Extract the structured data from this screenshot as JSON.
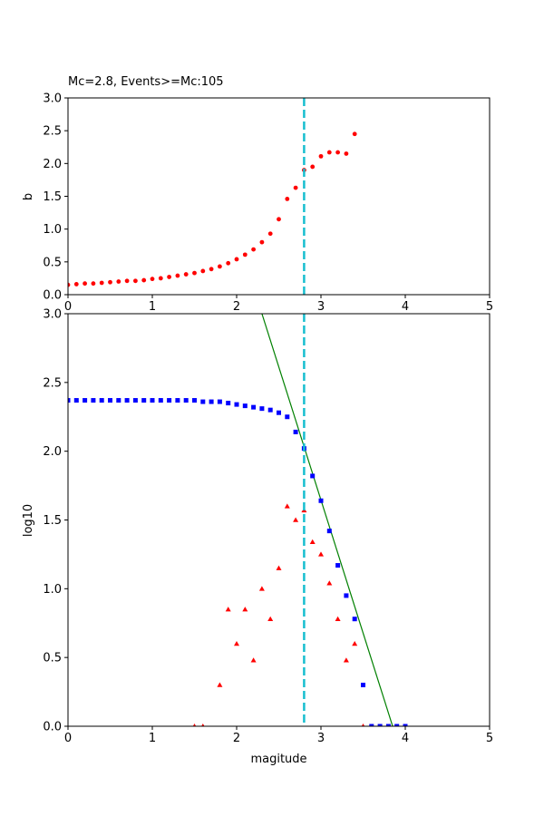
{
  "chart_data": [
    {
      "type": "scatter",
      "title": "Mc=2.8, Events>=Mc:105",
      "xlabel": "",
      "ylabel": "b",
      "xlim": [
        0,
        5
      ],
      "ylim": [
        0,
        3.0
      ],
      "xticks": [
        "0",
        "1",
        "2",
        "3",
        "4",
        "5"
      ],
      "yticks": [
        "0.0",
        "0.5",
        "1.0",
        "1.5",
        "2.0",
        "2.5",
        "3.0"
      ],
      "grid": false,
      "mc_line": {
        "x": 2.8,
        "color": "#17becf",
        "style": "dashed"
      },
      "series": [
        {
          "marker": "dot",
          "color": "#ff0000",
          "x": [
            0.0,
            0.1,
            0.2,
            0.3,
            0.4,
            0.5,
            0.6,
            0.7,
            0.8,
            0.9,
            1.0,
            1.1,
            1.2,
            1.3,
            1.4,
            1.5,
            1.6,
            1.7,
            1.8,
            1.9,
            2.0,
            2.1,
            2.2,
            2.3,
            2.4,
            2.5,
            2.6,
            2.7,
            2.8,
            2.9,
            3.0,
            3.1,
            3.2,
            3.3,
            3.4
          ],
          "y": [
            0.15,
            0.16,
            0.17,
            0.17,
            0.18,
            0.19,
            0.2,
            0.21,
            0.21,
            0.22,
            0.24,
            0.25,
            0.27,
            0.29,
            0.31,
            0.33,
            0.36,
            0.39,
            0.43,
            0.48,
            0.54,
            0.61,
            0.69,
            0.8,
            0.93,
            1.15,
            1.46,
            1.63,
            1.9,
            1.95,
            2.11,
            2.17,
            2.17,
            2.15,
            2.45
          ]
        }
      ]
    },
    {
      "type": "scatter",
      "title": "",
      "xlabel": "magitude",
      "ylabel": "log10",
      "xlim": [
        0,
        5
      ],
      "ylim": [
        0,
        3.0
      ],
      "xticks": [
        "0",
        "1",
        "2",
        "3",
        "4",
        "5"
      ],
      "yticks": [
        "0.0",
        "0.5",
        "1.0",
        "1.5",
        "2.0",
        "2.5",
        "3.0"
      ],
      "grid": false,
      "mc_line": {
        "x": 2.8,
        "color": "#17becf",
        "style": "dashed"
      },
      "fit_line": {
        "color": "#008000",
        "points": [
          [
            2.3,
            3.0
          ],
          [
            3.85,
            0.0
          ]
        ]
      },
      "series": [
        {
          "marker": "square",
          "color": "#0000ff",
          "x": [
            0.0,
            0.1,
            0.2,
            0.3,
            0.4,
            0.5,
            0.6,
            0.7,
            0.8,
            0.9,
            1.0,
            1.1,
            1.2,
            1.3,
            1.4,
            1.5,
            1.6,
            1.7,
            1.8,
            1.9,
            2.0,
            2.1,
            2.2,
            2.3,
            2.4,
            2.5,
            2.6,
            2.7,
            2.8,
            2.9,
            3.0,
            3.1,
            3.2,
            3.3,
            3.4,
            3.5,
            3.6,
            3.7,
            3.8,
            3.9,
            4.0
          ],
          "y": [
            2.37,
            2.37,
            2.37,
            2.37,
            2.37,
            2.37,
            2.37,
            2.37,
            2.37,
            2.37,
            2.37,
            2.37,
            2.37,
            2.37,
            2.37,
            2.37,
            2.36,
            2.36,
            2.36,
            2.35,
            2.34,
            2.33,
            2.32,
            2.31,
            2.3,
            2.28,
            2.25,
            2.14,
            2.02,
            1.82,
            1.64,
            1.42,
            1.17,
            0.95,
            0.78,
            0.3,
            0.0,
            0.0,
            0.0,
            0.0,
            0.0
          ]
        },
        {
          "marker": "triangle",
          "color": "#ff0000",
          "x": [
            1.5,
            1.6,
            1.8,
            1.9,
            2.0,
            2.1,
            2.2,
            2.3,
            2.4,
            2.5,
            2.6,
            2.7,
            2.8,
            2.9,
            3.0,
            3.1,
            3.2,
            3.3,
            3.4,
            3.5
          ],
          "y": [
            0.0,
            0.0,
            0.3,
            0.85,
            0.6,
            0.85,
            0.48,
            1.0,
            0.78,
            1.15,
            1.6,
            1.5,
            1.57,
            1.34,
            1.25,
            1.04,
            0.78,
            0.48,
            0.6,
            0.0
          ]
        }
      ]
    }
  ]
}
